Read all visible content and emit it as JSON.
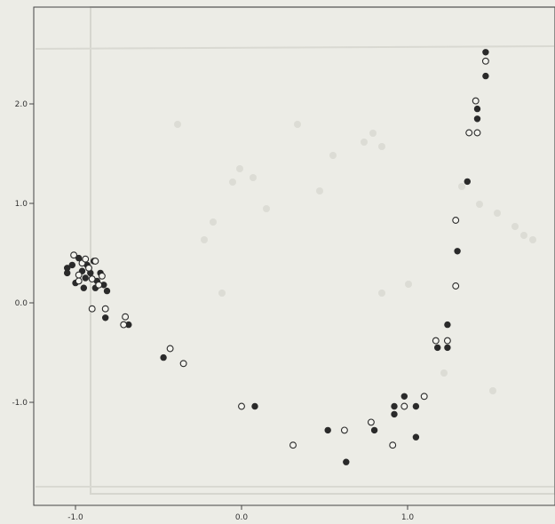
{
  "chart_data": {
    "type": "scatter",
    "title": "",
    "xlabel": "",
    "ylabel": "",
    "xlim": [
      -1.2,
      1.85
    ],
    "ylim": [
      -1.9,
      3.0
    ],
    "x_ticks": [
      {
        "value": -1.0,
        "label": "-1.0"
      },
      {
        "value": 0.0,
        "label": "0.0"
      },
      {
        "value": 1.0,
        "label": "1.0"
      }
    ],
    "y_ticks": [
      {
        "value": 2.0,
        "label": "2.0"
      },
      {
        "value": 1.0,
        "label": "1.0"
      },
      {
        "value": 0.0,
        "label": "0.0"
      },
      {
        "value": -1.0,
        "label": "-1.0"
      }
    ],
    "grid": false,
    "legend": "none",
    "colors": {
      "filled": "#2a2a2a",
      "open_stroke": "#2a2a2a",
      "open_fill": "#f3f3ee"
    },
    "series": [
      {
        "marker": "filled-circle",
        "points": [
          [
            -1.05,
            0.35
          ],
          [
            -1.05,
            0.3
          ],
          [
            -1.02,
            0.38
          ],
          [
            -0.98,
            0.45
          ],
          [
            -0.96,
            0.32
          ],
          [
            -0.94,
            0.25
          ],
          [
            -0.93,
            0.38
          ],
          [
            -0.91,
            0.3
          ],
          [
            -0.89,
            0.42
          ],
          [
            -0.87,
            0.22
          ],
          [
            -0.85,
            0.3
          ],
          [
            -0.83,
            0.18
          ],
          [
            -0.81,
            0.12
          ],
          [
            -1.0,
            0.2
          ],
          [
            -0.95,
            0.15
          ],
          [
            -0.88,
            0.15
          ],
          [
            -0.82,
            -0.15
          ],
          [
            -0.68,
            -0.22
          ],
          [
            -0.47,
            -0.55
          ],
          [
            0.08,
            -1.04
          ],
          [
            0.52,
            -1.28
          ],
          [
            0.63,
            -1.6
          ],
          [
            0.8,
            -1.28
          ],
          [
            0.92,
            -1.04
          ],
          [
            0.92,
            -1.12
          ],
          [
            0.98,
            -0.94
          ],
          [
            1.05,
            -1.04
          ],
          [
            1.05,
            -1.35
          ],
          [
            1.18,
            -0.45
          ],
          [
            1.24,
            -0.45
          ],
          [
            1.24,
            -0.22
          ],
          [
            1.3,
            0.52
          ],
          [
            1.36,
            1.22
          ],
          [
            1.42,
            1.85
          ],
          [
            1.42,
            1.95
          ],
          [
            1.47,
            2.28
          ],
          [
            1.47,
            2.52
          ]
        ]
      },
      {
        "marker": "open-circle",
        "points": [
          [
            -1.01,
            0.48
          ],
          [
            -0.98,
            0.28
          ],
          [
            -0.96,
            0.4
          ],
          [
            -0.92,
            0.35
          ],
          [
            -0.9,
            0.24
          ],
          [
            -0.88,
            0.42
          ],
          [
            -0.86,
            0.18
          ],
          [
            -0.98,
            0.22
          ],
          [
            -0.84,
            0.27
          ],
          [
            -0.94,
            0.44
          ],
          [
            -0.9,
            -0.06
          ],
          [
            -0.82,
            -0.06
          ],
          [
            -0.7,
            -0.14
          ],
          [
            -0.71,
            -0.22
          ],
          [
            -0.43,
            -0.46
          ],
          [
            -0.35,
            -0.61
          ],
          [
            0.0,
            -1.04
          ],
          [
            0.31,
            -1.43
          ],
          [
            0.62,
            -1.28
          ],
          [
            0.78,
            -1.2
          ],
          [
            0.91,
            -1.43
          ],
          [
            0.98,
            -1.04
          ],
          [
            1.1,
            -0.94
          ],
          [
            1.17,
            -0.38
          ],
          [
            1.24,
            -0.38
          ],
          [
            1.29,
            0.17
          ],
          [
            1.29,
            0.83
          ],
          [
            1.37,
            1.71
          ],
          [
            1.42,
            1.71
          ],
          [
            1.41,
            2.03
          ],
          [
            1.47,
            2.43
          ]
        ]
      }
    ]
  }
}
